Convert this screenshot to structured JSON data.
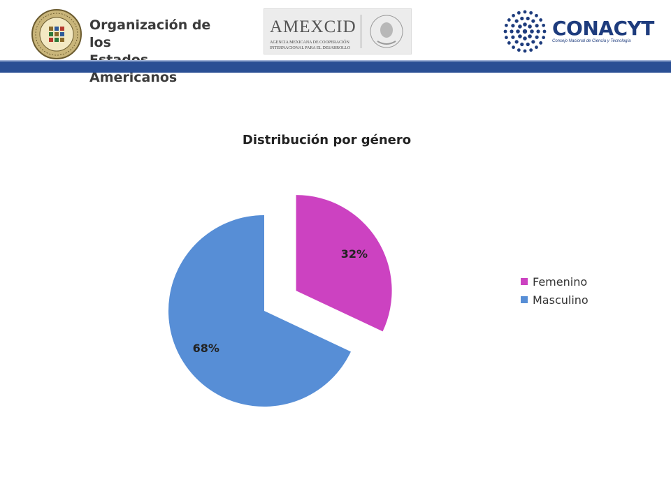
{
  "header": {
    "oea_line1": "Organización de los",
    "oea_line2": "Estados Americanos",
    "amexcid_name": "AMEXCID",
    "amexcid_sub1": "AGENCIA MEXICANA DE COOPERACIÓN",
    "amexcid_sub2": "INTERNACIONAL PARA EL DESARROLLO",
    "conacyt_name": "CONACYT",
    "conacyt_sub": "Consejo Nacional de Ciencia y Tecnología",
    "band_color": "#2a4f94",
    "conacyt_color": "#1e3c7d"
  },
  "chart_data": {
    "type": "pie",
    "title": "Distribución por género",
    "categories": [
      "Femenino",
      "Masculino"
    ],
    "values": [
      32,
      68
    ],
    "labels": [
      "32%",
      "68%"
    ],
    "colors": [
      "#cc42c1",
      "#578ed6"
    ],
    "exploded": [
      "Femenino"
    ],
    "start_angle_deg": 0,
    "legend_position": "right"
  }
}
